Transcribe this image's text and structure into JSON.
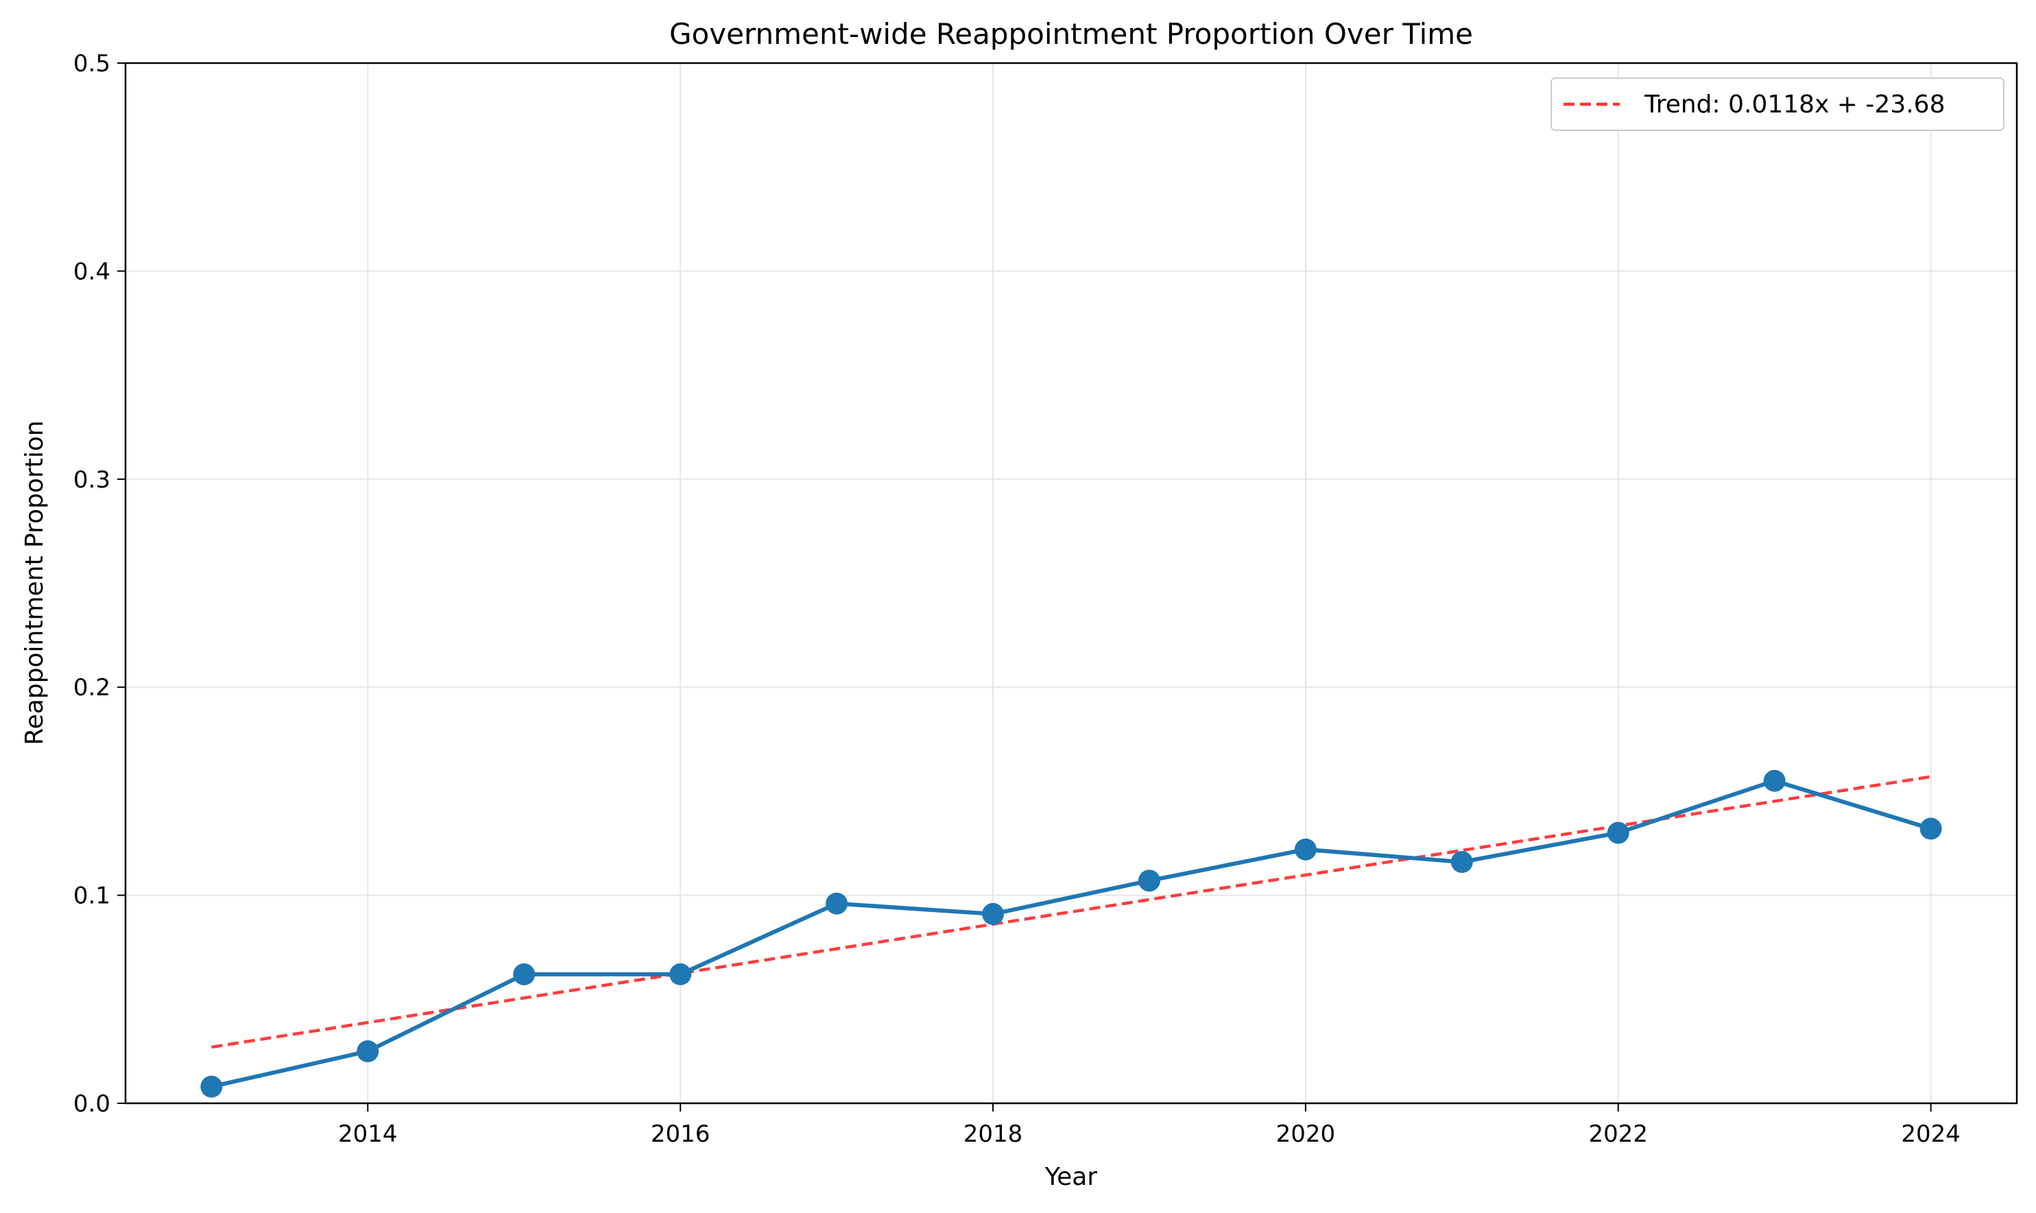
{
  "chart_data": {
    "type": "line",
    "title": "Government-wide Reappointment Proportion Over Time",
    "xlabel": "Year",
    "ylabel": "Reappointment Proportion",
    "xlim": [
      2012.45,
      2024.55
    ],
    "ylim": [
      0,
      0.5
    ],
    "xticks": [
      2014,
      2016,
      2018,
      2020,
      2022,
      2024
    ],
    "yticks": [
      0.0,
      0.1,
      0.2,
      0.3,
      0.4,
      0.5
    ],
    "ytick_labels": [
      "0.0",
      "0.1",
      "0.2",
      "0.3",
      "0.4",
      "0.5"
    ],
    "grid": true,
    "legend_position": "top-right",
    "series": [
      {
        "name": "",
        "style": "line-with-markers",
        "color": "#1f77b4",
        "x": [
          2013,
          2014,
          2015,
          2016,
          2017,
          2018,
          2019,
          2020,
          2021,
          2022,
          2023,
          2024
        ],
        "y": [
          0.008,
          0.025,
          0.062,
          0.062,
          0.096,
          0.091,
          0.107,
          0.122,
          0.116,
          0.13,
          0.155,
          0.132
        ]
      },
      {
        "name": "Trend: 0.0118x + -23.68",
        "style": "dashed",
        "color": "#ff3333",
        "x": [
          2013,
          2024
        ],
        "y": [
          0.027,
          0.157
        ]
      }
    ]
  }
}
